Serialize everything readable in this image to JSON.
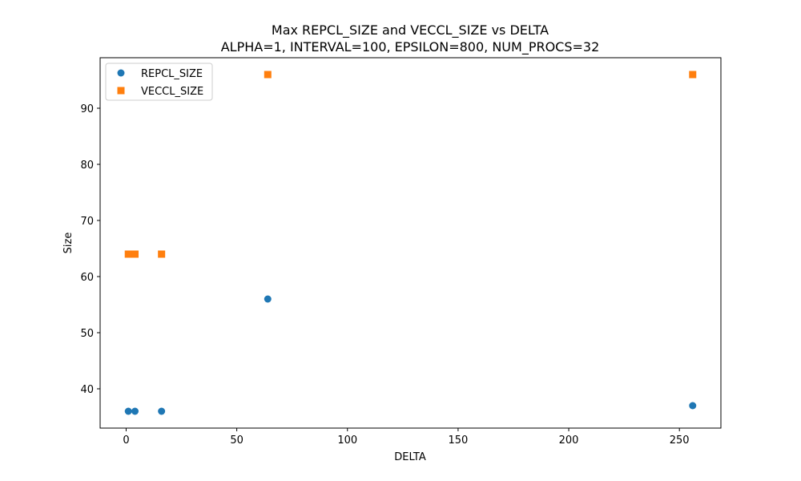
{
  "chart_data": {
    "type": "scatter",
    "title": "Max REPCL_SIZE and VECCL_SIZE vs DELTA",
    "subtitle": "ALPHA=1, INTERVAL=100, EPSILON=800, NUM_PROCS=32",
    "xlabel": "DELTA",
    "ylabel": "Size",
    "xlim": [
      -11.75,
      268.75
    ],
    "ylim": [
      33,
      99
    ],
    "xticks": [
      0,
      50,
      100,
      150,
      200,
      250
    ],
    "yticks": [
      40,
      50,
      60,
      70,
      80,
      90
    ],
    "grid": false,
    "legend_position": "top-left",
    "series": [
      {
        "name": "REPCL_SIZE",
        "marker": "circle",
        "color": "#1f77b4",
        "points": [
          {
            "x": 1,
            "y": 36
          },
          {
            "x": 4,
            "y": 36
          },
          {
            "x": 16,
            "y": 36
          },
          {
            "x": 64,
            "y": 56
          },
          {
            "x": 256,
            "y": 37
          }
        ]
      },
      {
        "name": "VECCL_SIZE",
        "marker": "square",
        "color": "#ff7f0e",
        "points": [
          {
            "x": 1,
            "y": 64
          },
          {
            "x": 4,
            "y": 64
          },
          {
            "x": 16,
            "y": 64
          },
          {
            "x": 64,
            "y": 96
          },
          {
            "x": 256,
            "y": 96
          }
        ]
      }
    ]
  }
}
